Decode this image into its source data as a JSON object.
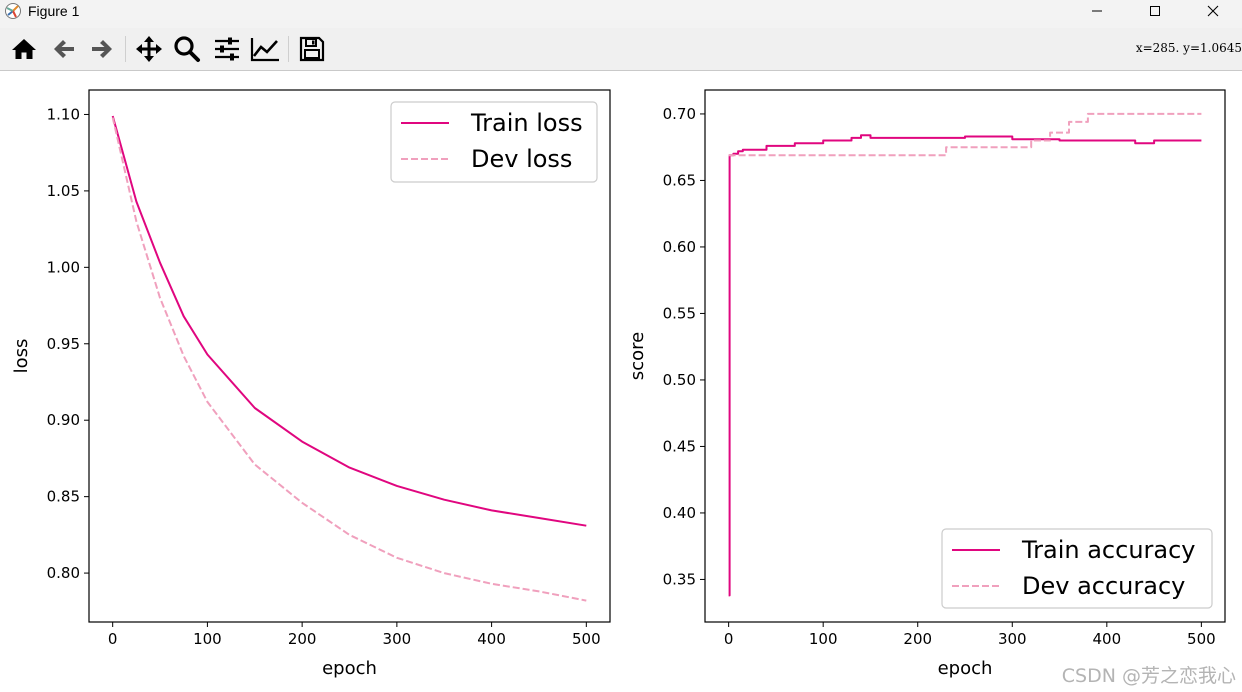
{
  "window": {
    "title": "Figure 1"
  },
  "toolbar": {
    "buttons": [
      "home-icon",
      "back-arrow-icon",
      "forward-arrow-icon",
      "pan-move-icon",
      "zoom-magnifier-icon",
      "configure-subplots-icon",
      "edit-axis-icon",
      "save-floppy-icon"
    ],
    "coords": "x=285.  y=1.0645"
  },
  "colors": {
    "train": "#e0067f",
    "dev": "#f0a0bd",
    "axis": "#000000"
  },
  "chart_data": [
    {
      "type": "line",
      "xlabel": "epoch",
      "ylabel": "loss",
      "xlim": [
        -25,
        525
      ],
      "ylim": [
        0.768,
        1.116
      ],
      "xticks": [
        0,
        100,
        200,
        300,
        400,
        500
      ],
      "yticks": [
        1.1,
        1.05,
        1.0,
        0.95,
        0.9,
        0.85,
        0.8
      ],
      "legend": "top-right",
      "series": [
        {
          "name": "Train loss",
          "style": "solid",
          "x": [
            0,
            25,
            50,
            75,
            100,
            150,
            200,
            250,
            300,
            350,
            400,
            450,
            500
          ],
          "y": [
            1.099,
            1.043,
            1.003,
            0.968,
            0.943,
            0.908,
            0.886,
            0.869,
            0.857,
            0.848,
            0.841,
            0.836,
            0.831
          ]
        },
        {
          "name": "Dev loss",
          "style": "dashed",
          "x": [
            0,
            25,
            50,
            75,
            100,
            150,
            200,
            250,
            300,
            350,
            400,
            450,
            500
          ],
          "y": [
            1.098,
            1.03,
            0.98,
            0.942,
            0.912,
            0.871,
            0.846,
            0.825,
            0.81,
            0.8,
            0.793,
            0.788,
            0.782
          ]
        }
      ]
    },
    {
      "type": "line",
      "xlabel": "epoch",
      "ylabel": "score",
      "xlim": [
        -25,
        525
      ],
      "ylim": [
        0.318,
        0.718
      ],
      "xticks": [
        0,
        100,
        200,
        300,
        400,
        500
      ],
      "yticks": [
        0.7,
        0.65,
        0.6,
        0.55,
        0.5,
        0.45,
        0.4,
        0.35
      ],
      "legend": "bottom-right",
      "series": [
        {
          "name": "Train accuracy",
          "style": "solid",
          "x": [
            0,
            1,
            5,
            10,
            15,
            40,
            70,
            100,
            130,
            140,
            150,
            250,
            300,
            350,
            430,
            450,
            500
          ],
          "y": [
            0.338,
            0.669,
            0.67,
            0.672,
            0.673,
            0.676,
            0.678,
            0.68,
            0.682,
            0.684,
            0.682,
            0.683,
            0.681,
            0.68,
            0.678,
            0.68,
            0.68
          ]
        },
        {
          "name": "Dev accuracy",
          "style": "dashed",
          "x": [
            0,
            1,
            220,
            230,
            300,
            320,
            340,
            360,
            380,
            400,
            500
          ],
          "y": [
            0.669,
            0.669,
            0.669,
            0.675,
            0.675,
            0.68,
            0.686,
            0.694,
            0.7,
            0.7,
            0.7
          ]
        }
      ]
    }
  ],
  "watermark": "CSDN @芳之恋我心"
}
